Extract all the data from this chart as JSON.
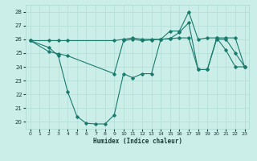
{
  "xlabel": "Humidex (Indice chaleur)",
  "bg_color": "#cceee8",
  "line_color": "#1a7a6e",
  "xlim": [
    -0.5,
    23.5
  ],
  "ylim": [
    19.5,
    28.5
  ],
  "xticks": [
    0,
    1,
    2,
    3,
    4,
    5,
    6,
    7,
    8,
    9,
    10,
    11,
    12,
    13,
    14,
    15,
    16,
    17,
    18,
    19,
    20,
    21,
    22,
    23
  ],
  "yticks": [
    20,
    21,
    22,
    23,
    24,
    25,
    26,
    27,
    28
  ],
  "lines": [
    {
      "x": [
        0,
        2,
        3,
        4,
        5,
        6,
        7,
        8,
        9,
        10,
        11,
        12,
        13,
        14,
        15,
        16,
        17,
        18,
        19,
        20,
        21,
        22,
        23
      ],
      "y": [
        25.9,
        25.4,
        24.8,
        22.2,
        20.4,
        19.9,
        19.85,
        19.85,
        20.5,
        23.5,
        23.2,
        23.5,
        23.5,
        26.0,
        26.6,
        26.6,
        28.0,
        26.0,
        26.1,
        26.1,
        25.2,
        24.0,
        24.0
      ]
    },
    {
      "x": [
        0,
        2,
        3,
        4,
        9,
        10,
        11,
        12,
        13,
        14,
        15,
        16,
        17,
        18,
        19,
        20,
        21,
        22,
        23
      ],
      "y": [
        25.9,
        25.1,
        24.95,
        24.8,
        23.5,
        25.9,
        26.0,
        25.9,
        25.95,
        26.0,
        26.05,
        26.5,
        27.2,
        23.8,
        23.8,
        26.0,
        26.0,
        25.0,
        24.0
      ]
    },
    {
      "x": [
        0,
        2,
        3,
        4,
        9,
        10,
        11,
        12,
        13,
        14,
        15,
        16,
        17,
        18,
        19,
        20,
        21,
        22,
        23
      ],
      "y": [
        25.9,
        25.9,
        25.9,
        25.9,
        25.9,
        26.0,
        26.1,
        26.0,
        26.0,
        26.0,
        26.05,
        26.1,
        26.1,
        23.8,
        23.8,
        26.1,
        26.1,
        26.1,
        24.0
      ]
    }
  ],
  "grid_color": "#b0ddd6",
  "marker": "D",
  "marker_size": 1.8,
  "linewidth": 0.8
}
